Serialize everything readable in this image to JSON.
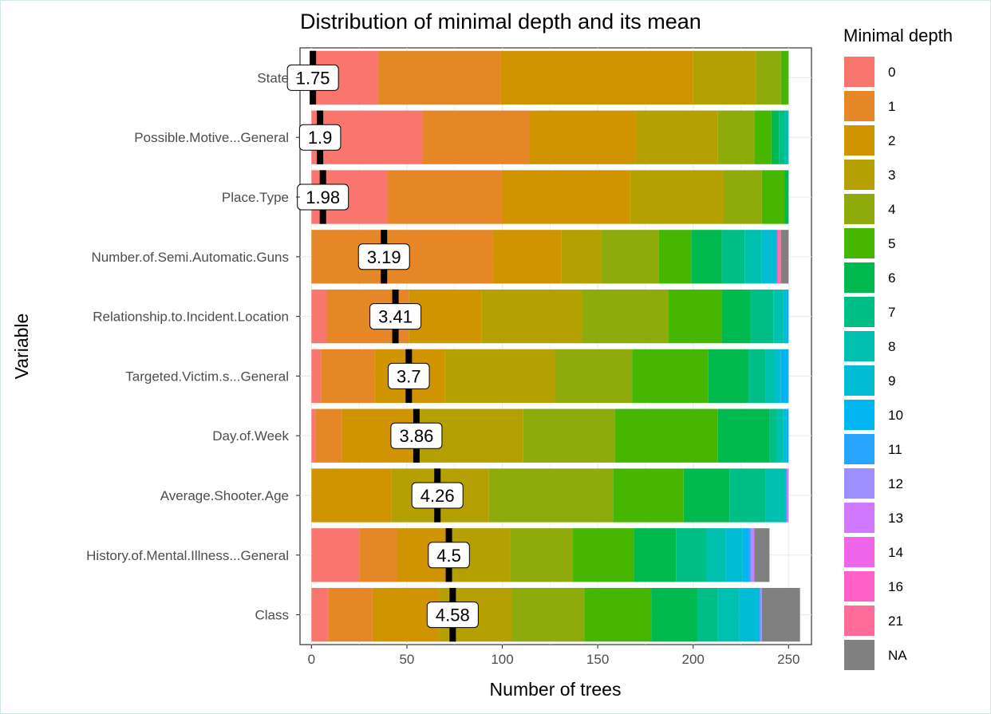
{
  "chart_data": {
    "type": "bar",
    "orientation": "horizontal",
    "stacked": true,
    "title": "Distribution of minimal depth and its mean",
    "xlabel": "Number of trees",
    "ylabel": "Variable",
    "xlim": [
      -6,
      262
    ],
    "xticks": [
      0,
      50,
      100,
      150,
      200,
      250
    ],
    "grid": true,
    "legend": {
      "title": "Minimal depth",
      "placement": "right",
      "entries": [
        {
          "label": "0",
          "color": "#F8766D"
        },
        {
          "label": "1",
          "color": "#E58726"
        },
        {
          "label": "2",
          "color": "#D09400"
        },
        {
          "label": "3",
          "color": "#B4A000"
        },
        {
          "label": "4",
          "color": "#8EAB0B"
        },
        {
          "label": "5",
          "color": "#46B600"
        },
        {
          "label": "6",
          "color": "#00BA4F"
        },
        {
          "label": "7",
          "color": "#00BF86"
        },
        {
          "label": "8",
          "color": "#00C0B0"
        },
        {
          "label": "9",
          "color": "#00BDD4"
        },
        {
          "label": "10",
          "color": "#00B5F0"
        },
        {
          "label": "11",
          "color": "#26A4FF"
        },
        {
          "label": "12",
          "color": "#9E8EFF"
        },
        {
          "label": "13",
          "color": "#D078FF"
        },
        {
          "label": "14",
          "color": "#F066EA"
        },
        {
          "label": "16",
          "color": "#FF61C9"
        },
        {
          "label": "21",
          "color": "#FF6C9A"
        },
        {
          "label": "NA",
          "color": "#808080"
        }
      ]
    },
    "categories": [
      "State",
      "Possible.Motive...General",
      "Place.Type",
      "Number.of.Semi.Automatic.Guns",
      "Relationship.to.Incident.Location",
      "Targeted.Victim.s...General",
      "Day.of.Week",
      "Average.Shooter.Age",
      "History.of.Mental.Illness...General",
      "Class"
    ],
    "segments": [
      [
        35,
        64,
        101,
        33,
        13,
        4,
        0,
        0,
        0,
        0,
        0,
        0,
        0,
        0,
        0,
        0,
        0,
        0
      ],
      [
        58,
        56,
        56,
        43,
        19,
        9,
        4,
        3,
        2,
        0,
        0,
        0,
        0,
        0,
        0,
        0,
        0,
        0
      ],
      [
        40,
        60,
        67,
        49,
        20,
        12,
        2,
        0,
        0,
        0,
        0,
        0,
        0,
        0,
        0,
        0,
        0,
        0
      ],
      [
        0,
        95,
        36,
        21,
        30,
        17,
        16,
        12,
        9,
        8,
        0,
        0,
        0,
        0,
        0,
        1,
        1,
        4
      ],
      [
        8,
        43,
        38,
        53,
        45,
        28,
        15,
        12,
        5,
        2,
        1,
        0,
        0,
        0,
        0,
        0,
        0,
        0
      ],
      [
        5,
        28,
        37,
        58,
        40,
        40,
        21,
        9,
        5,
        3,
        4,
        0,
        0,
        0,
        0,
        0,
        0,
        0
      ],
      [
        2,
        14,
        40,
        55,
        48,
        54,
        27,
        4,
        3,
        2,
        1,
        0,
        0,
        0,
        0,
        0,
        0,
        0
      ],
      [
        0,
        0,
        42,
        51,
        65,
        37,
        24,
        19,
        10,
        1,
        0,
        0,
        0,
        1,
        0,
        0,
        0,
        0
      ],
      [
        25,
        20,
        28,
        31,
        33,
        32,
        22,
        16,
        10,
        9,
        3,
        1,
        1,
        1,
        0,
        0,
        0,
        8
      ],
      [
        9,
        23,
        35,
        38,
        38,
        35,
        24,
        11,
        11,
        10,
        1,
        0,
        1,
        0,
        0,
        0,
        0,
        20
      ]
    ],
    "means": [
      {
        "x": 0.75,
        "label": "1.75"
      },
      {
        "x": 4.5,
        "label": "1.9"
      },
      {
        "x": 6,
        "label": "1.98"
      },
      {
        "x": 38,
        "label": "3.19"
      },
      {
        "x": 44,
        "label": "3.41"
      },
      {
        "x": 51,
        "label": "3.7"
      },
      {
        "x": 55,
        "label": "3.86"
      },
      {
        "x": 66,
        "label": "4.26"
      },
      {
        "x": 72,
        "label": "4.5"
      },
      {
        "x": 74,
        "label": "4.58"
      }
    ]
  }
}
